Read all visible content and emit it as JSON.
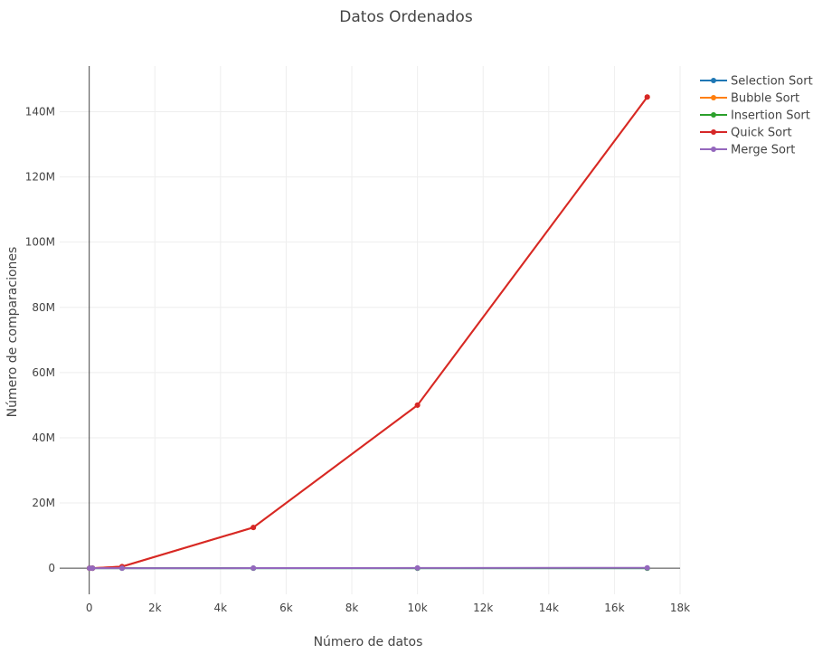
{
  "chart_data": {
    "type": "line",
    "title": "Datos Ordenados",
    "xlabel": "Número de datos",
    "ylabel": "Número de comparaciones",
    "xlim": [
      -900,
      18000
    ],
    "ylim": [
      -8000000,
      154000000
    ],
    "x_ticks": [
      0,
      2000,
      4000,
      6000,
      8000,
      10000,
      12000,
      14000,
      16000,
      18000
    ],
    "x_tick_labels": [
      "0",
      "2k",
      "4k",
      "6k",
      "8k",
      "10k",
      "12k",
      "14k",
      "16k",
      "18k"
    ],
    "y_ticks": [
      0,
      20000000,
      40000000,
      60000000,
      80000000,
      100000000,
      120000000,
      140000000
    ],
    "y_tick_labels": [
      "0",
      "20M",
      "40M",
      "60M",
      "80M",
      "100M",
      "120M",
      "140M"
    ],
    "grid": true,
    "legend_position": "top-right",
    "x": [
      10,
      100,
      1000,
      5000,
      10000,
      17000
    ],
    "series": [
      {
        "name": "Selection Sort",
        "color": "#1f77b4",
        "values": [
          9,
          99,
          999,
          4999,
          9999,
          16999
        ]
      },
      {
        "name": "Bubble Sort",
        "color": "#ff7f0e",
        "values": [
          45,
          4950,
          499500,
          12497500,
          49995000,
          144491500
        ]
      },
      {
        "name": "Insertion Sort",
        "color": "#2ca02c",
        "values": [
          9,
          99,
          999,
          4999,
          9999,
          16999
        ]
      },
      {
        "name": "Quick Sort",
        "color": "#d62728",
        "values": [
          45,
          4950,
          499500,
          12497500,
          49995000,
          144491500
        ]
      },
      {
        "name": "Merge Sort",
        "color": "#9467bd",
        "values": [
          19,
          316,
          4932,
          32004,
          69008,
          126000
        ]
      }
    ]
  }
}
